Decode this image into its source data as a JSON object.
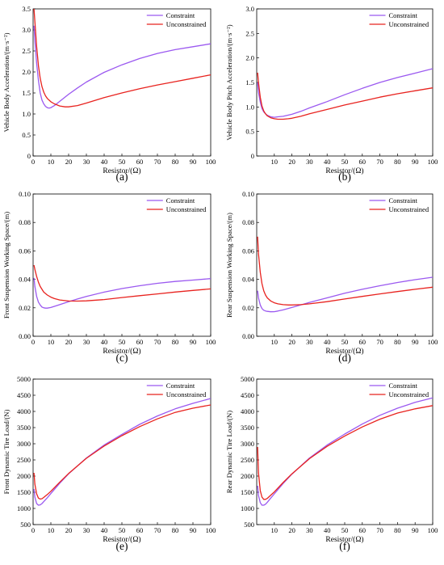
{
  "figure": {
    "panels": [
      {
        "id": "a",
        "caption": "(a)"
      },
      {
        "id": "b",
        "caption": "(b)"
      },
      {
        "id": "c",
        "caption": "(c)"
      },
      {
        "id": "d",
        "caption": "(d)"
      },
      {
        "id": "e",
        "caption": "(e)"
      },
      {
        "id": "f",
        "caption": "(f)"
      }
    ]
  },
  "colors": {
    "constraint": "#9b59f0",
    "unconstrained": "#e8231f"
  },
  "chart_data": [
    {
      "type": "line",
      "panel": "a",
      "title": "",
      "xlabel": "Resistor/(Ω)",
      "ylabel": "Vehicle Body Acceleration/(m·s⁻²)",
      "xlim": [
        0,
        100
      ],
      "ylim": [
        0,
        3.5
      ],
      "xticks": [
        "0",
        "10",
        "20",
        "30",
        "40",
        "50",
        "60",
        "70",
        "80",
        "90",
        "100"
      ],
      "yticks": [
        "0",
        "0.5",
        "1.0",
        "1.5",
        "2.0",
        "2.5",
        "3.0",
        "3.5"
      ],
      "legend": "top-right",
      "series": [
        {
          "name": "Constraint",
          "color": "#9b59f0",
          "x": [
            0.5,
            1,
            2,
            3,
            4,
            5,
            6,
            7,
            8,
            9,
            10,
            12,
            15,
            20,
            25,
            30,
            40,
            50,
            60,
            70,
            80,
            90,
            100
          ],
          "y": [
            3.1,
            2.75,
            2.2,
            1.8,
            1.5,
            1.33,
            1.24,
            1.18,
            1.15,
            1.14,
            1.15,
            1.2,
            1.3,
            1.47,
            1.62,
            1.76,
            1.99,
            2.17,
            2.32,
            2.44,
            2.53,
            2.6,
            2.67
          ]
        },
        {
          "name": "Unconstrained",
          "color": "#e8231f",
          "x": [
            0.5,
            1,
            2,
            3,
            4,
            5,
            6,
            7,
            8,
            10,
            12,
            15,
            18,
            20,
            25,
            30,
            40,
            50,
            60,
            70,
            80,
            90,
            100
          ],
          "y": [
            3.5,
            3.2,
            2.6,
            2.15,
            1.85,
            1.65,
            1.52,
            1.43,
            1.37,
            1.29,
            1.24,
            1.19,
            1.17,
            1.17,
            1.2,
            1.26,
            1.39,
            1.5,
            1.6,
            1.69,
            1.77,
            1.85,
            1.93
          ]
        }
      ]
    },
    {
      "type": "line",
      "panel": "b",
      "title": "",
      "xlabel": "Resistor/(Ω)",
      "ylabel": "Vehicle Body Pitch Acceleration/(m·s⁻²)",
      "xlim": [
        0,
        100
      ],
      "ylim": [
        0,
        3.0
      ],
      "xticks": [
        "10",
        "20",
        "30",
        "40",
        "50",
        "60",
        "70",
        "80",
        "90",
        "100"
      ],
      "yticks": [
        "0",
        "0.5",
        "1.0",
        "1.5",
        "2.0",
        "2.5",
        "3.0"
      ],
      "legend": "top-right",
      "series": [
        {
          "name": "Constraint",
          "color": "#9b59f0",
          "x": [
            0.5,
            1,
            2,
            3,
            4,
            5,
            6,
            8,
            10,
            12,
            15,
            20,
            25,
            30,
            40,
            50,
            60,
            70,
            80,
            90,
            100
          ],
          "y": [
            1.5,
            1.3,
            1.1,
            0.97,
            0.9,
            0.86,
            0.83,
            0.8,
            0.79,
            0.8,
            0.81,
            0.85,
            0.91,
            0.98,
            1.11,
            1.25,
            1.38,
            1.5,
            1.6,
            1.69,
            1.78
          ]
        },
        {
          "name": "Unconstrained",
          "color": "#e8231f",
          "x": [
            0.5,
            1,
            2,
            3,
            4,
            5,
            6,
            8,
            10,
            12,
            15,
            18,
            20,
            25,
            30,
            40,
            50,
            60,
            70,
            80,
            90,
            100
          ],
          "y": [
            1.7,
            1.5,
            1.2,
            1.02,
            0.92,
            0.86,
            0.82,
            0.78,
            0.76,
            0.75,
            0.75,
            0.76,
            0.77,
            0.81,
            0.86,
            0.95,
            1.04,
            1.12,
            1.2,
            1.27,
            1.33,
            1.39
          ]
        }
      ]
    },
    {
      "type": "line",
      "panel": "c",
      "title": "",
      "xlabel": "Resistor/(Ω)",
      "ylabel": "Front Suspension Working Space/(m)",
      "xlim": [
        0,
        100
      ],
      "ylim": [
        0,
        0.1
      ],
      "xticks": [
        "0",
        "10",
        "20",
        "30",
        "40",
        "50",
        "60",
        "70",
        "80",
        "90",
        "100"
      ],
      "yticks": [
        "0.00",
        "0.02",
        "0.04",
        "0.06",
        "0.08",
        "0.10"
      ],
      "legend": "top-right",
      "series": [
        {
          "name": "Constraint",
          "color": "#9b59f0",
          "x": [
            0.5,
            1,
            2,
            3,
            4,
            5,
            6,
            7,
            8,
            10,
            12,
            15,
            20,
            25,
            30,
            40,
            50,
            60,
            70,
            80,
            90,
            100
          ],
          "y": [
            0.041,
            0.035,
            0.028,
            0.024,
            0.022,
            0.0205,
            0.02,
            0.0198,
            0.0198,
            0.0202,
            0.021,
            0.0222,
            0.0243,
            0.0262,
            0.028,
            0.031,
            0.0335,
            0.0355,
            0.0372,
            0.0385,
            0.0395,
            0.0405
          ]
        },
        {
          "name": "Unconstrained",
          "color": "#e8231f",
          "x": [
            0.5,
            1,
            2,
            3,
            4,
            5,
            6,
            8,
            10,
            12,
            15,
            20,
            25,
            30,
            40,
            50,
            60,
            70,
            80,
            90,
            100
          ],
          "y": [
            0.05,
            0.047,
            0.042,
            0.038,
            0.035,
            0.033,
            0.031,
            0.029,
            0.0275,
            0.0265,
            0.0255,
            0.0248,
            0.0247,
            0.0249,
            0.0258,
            0.0272,
            0.0285,
            0.0298,
            0.0311,
            0.0322,
            0.0333
          ]
        }
      ]
    },
    {
      "type": "line",
      "panel": "d",
      "title": "",
      "xlabel": "Resistor/(Ω)",
      "ylabel": "Rear Suspension Working Space/(m)",
      "xlim": [
        0,
        100
      ],
      "ylim": [
        0,
        0.1
      ],
      "xticks": [
        "10",
        "20",
        "30",
        "40",
        "50",
        "60",
        "70",
        "80",
        "90",
        "100"
      ],
      "yticks": [
        "0.00",
        "0.02",
        "0.04",
        "0.06",
        "0.08",
        "0.10"
      ],
      "legend": "top-right",
      "series": [
        {
          "name": "Constraint",
          "color": "#9b59f0",
          "x": [
            0.5,
            1,
            2,
            3,
            4,
            5,
            6,
            8,
            10,
            12,
            15,
            20,
            25,
            30,
            40,
            50,
            60,
            70,
            80,
            90,
            100
          ],
          "y": [
            0.032,
            0.027,
            0.022,
            0.0195,
            0.0183,
            0.0178,
            0.0175,
            0.0172,
            0.0173,
            0.0177,
            0.0185,
            0.0202,
            0.022,
            0.0238,
            0.027,
            0.0302,
            0.033,
            0.0355,
            0.0378,
            0.0398,
            0.0415
          ]
        },
        {
          "name": "Unconstrained",
          "color": "#e8231f",
          "x": [
            0.5,
            1,
            2,
            3,
            4,
            5,
            6,
            8,
            10,
            12,
            15,
            18,
            20,
            25,
            30,
            40,
            50,
            60,
            70,
            80,
            90,
            100
          ],
          "y": [
            0.07,
            0.058,
            0.045,
            0.037,
            0.032,
            0.029,
            0.027,
            0.0248,
            0.0235,
            0.0228,
            0.0222,
            0.022,
            0.022,
            0.0222,
            0.0228,
            0.0243,
            0.0262,
            0.028,
            0.0298,
            0.0314,
            0.033,
            0.0345
          ]
        }
      ]
    },
    {
      "type": "line",
      "panel": "e",
      "title": "",
      "xlabel": "Resistor/(Ω)",
      "ylabel": "Front Dynamic Tire Load/(N)",
      "xlim": [
        0,
        100
      ],
      "ylim": [
        500,
        5000
      ],
      "xticks": [
        "0",
        "10",
        "20",
        "30",
        "40",
        "50",
        "60",
        "70",
        "80",
        "90",
        "100"
      ],
      "yticks": [
        "500",
        "1000",
        "1500",
        "2000",
        "2500",
        "3000",
        "3500",
        "4000",
        "4500",
        "5000"
      ],
      "legend": "top-right",
      "series": [
        {
          "name": "Constraint",
          "color": "#9b59f0",
          "x": [
            0.5,
            1,
            2,
            3,
            4,
            5,
            6,
            8,
            10,
            15,
            20,
            30,
            40,
            50,
            60,
            70,
            80,
            90,
            100
          ],
          "y": [
            1600,
            1350,
            1150,
            1100,
            1110,
            1150,
            1210,
            1330,
            1460,
            1780,
            2070,
            2560,
            2960,
            3290,
            3600,
            3860,
            4080,
            4250,
            4400
          ]
        },
        {
          "name": "Unconstrained",
          "color": "#e8231f",
          "x": [
            0.5,
            1,
            2,
            3,
            4,
            5,
            6,
            8,
            10,
            15,
            20,
            30,
            40,
            50,
            60,
            70,
            80,
            90,
            100
          ],
          "y": [
            2100,
            1750,
            1450,
            1320,
            1290,
            1300,
            1340,
            1430,
            1530,
            1810,
            2080,
            2550,
            2930,
            3250,
            3530,
            3770,
            3970,
            4100,
            4200
          ]
        }
      ]
    },
    {
      "type": "line",
      "panel": "f",
      "title": "",
      "xlabel": "Resistor/(Ω)",
      "ylabel": "Rear Dynamic Tire Load/(N)",
      "xlim": [
        0,
        100
      ],
      "ylim": [
        500,
        5000
      ],
      "xticks": [
        "10",
        "20",
        "30",
        "40",
        "50",
        "60",
        "70",
        "80",
        "90",
        "100"
      ],
      "yticks": [
        "500",
        "1000",
        "1500",
        "2000",
        "2500",
        "3000",
        "3500",
        "4000",
        "4500",
        "5000"
      ],
      "legend": "top-right",
      "series": [
        {
          "name": "Constraint",
          "color": "#9b59f0",
          "x": [
            0.5,
            1,
            2,
            3,
            4,
            5,
            6,
            8,
            10,
            15,
            20,
            30,
            40,
            50,
            60,
            70,
            80,
            90,
            100
          ],
          "y": [
            1700,
            1400,
            1180,
            1100,
            1100,
            1130,
            1190,
            1320,
            1450,
            1770,
            2060,
            2560,
            2960,
            3300,
            3610,
            3880,
            4100,
            4280,
            4420
          ]
        },
        {
          "name": "Unconstrained",
          "color": "#e8231f",
          "x": [
            0.5,
            1,
            2,
            3,
            4,
            5,
            6,
            8,
            10,
            15,
            20,
            30,
            40,
            50,
            60,
            70,
            80,
            90,
            100
          ],
          "y": [
            2900,
            2100,
            1550,
            1350,
            1280,
            1280,
            1310,
            1410,
            1510,
            1800,
            2070,
            2540,
            2920,
            3240,
            3520,
            3760,
            3950,
            4080,
            4180
          ]
        }
      ]
    }
  ]
}
